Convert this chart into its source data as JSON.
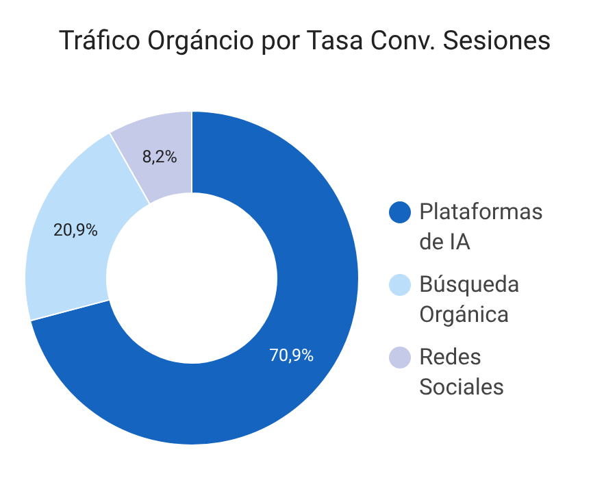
{
  "chart_data": {
    "type": "donut",
    "title": "Tráfico Orgáncio por Tasa Conv. Sesiones",
    "categories": [
      "Plataformas de IA",
      "Búsqueda Orgánica",
      "Redes Sociales"
    ],
    "values": [
      70.9,
      20.9,
      8.2
    ],
    "colors": [
      "#1565c0",
      "#bbdefb",
      "#c5cae9"
    ],
    "value_labels": [
      "70,9%",
      "20,9%",
      "8,2%"
    ],
    "legend": "right"
  }
}
